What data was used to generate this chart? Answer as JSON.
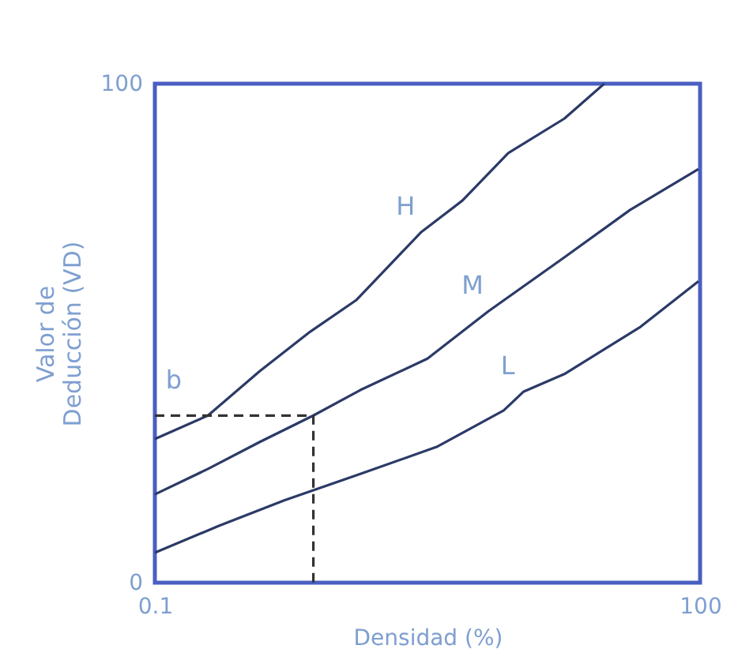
{
  "chart_data": {
    "type": "line",
    "xlabel": "Densidad (%)",
    "ylabel": "Valor de\nDeducción (VD)",
    "log": "x",
    "xlim": [
      0.1,
      100
    ],
    "xticks": [
      0.1,
      100
    ],
    "ylim": [
      0,
      100
    ],
    "yticks": [
      0,
      100
    ],
    "grid": false,
    "marker": "none",
    "series": [
      {
        "name": "H",
        "color": "#2b3a67",
        "x": [
          0.1,
          0.196,
          0.378,
          0.716,
          1.28,
          1.99,
          2.93,
          4.93,
          8.8,
          17.9,
          29.7
        ],
        "values": [
          28.8,
          33.5,
          42.4,
          50.3,
          56.6,
          63.9,
          70.3,
          76.6,
          86.1,
          93.0,
          100
        ]
      },
      {
        "name": "M",
        "color": "#2b3a67",
        "x": [
          0.1,
          0.196,
          0.378,
          0.745,
          1.35,
          3.16,
          6.84,
          17.9,
          41.2,
          98
        ],
        "values": [
          17.7,
          22.8,
          28.2,
          33.5,
          38.6,
          44.9,
          54.4,
          65.2,
          74.7,
          82.9
        ]
      },
      {
        "name": "L",
        "color": "#2b3a67",
        "x": [
          0.1,
          0.225,
          0.515,
          1.35,
          3.55,
          8.3,
          10.7,
          17.9,
          47.1,
          98
        ],
        "values": [
          6.0,
          11.4,
          16.5,
          21.8,
          27.2,
          34.5,
          38.3,
          41.8,
          51.3,
          60.4
        ]
      },
      {
        "color": "#333333",
        "line_style": "dashed",
        "x": [
          0.1,
          0.745,
          0.745
        ],
        "values": [
          33.5,
          33.5,
          0
        ]
      }
    ],
    "annotations": [
      "b"
    ]
  }
}
